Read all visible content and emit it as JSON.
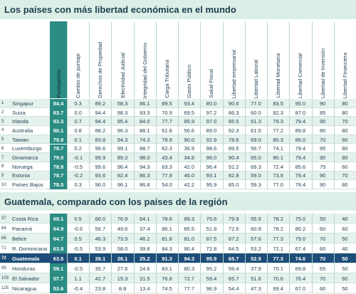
{
  "title": "Los países con más libertad económica en el mundo",
  "columns": [
    "Puntuación",
    "Cambio de puntaje",
    "Derechos de Propiedad",
    "Efectividad Judicial",
    "Integridad del Gobierno",
    "Carga Tributaria",
    "Gasto Público",
    "Salud Fiscal",
    "Libertad empresarial",
    "Libertad Laboral",
    "Libertad Monetaria",
    "Libertad Comercial",
    "Libertad de Inversión",
    "Libertad Financiera"
  ],
  "table1": {
    "rows": [
      {
        "rank": "1",
        "country": "Singapur",
        "score": "84.4",
        "values": [
          "0.3",
          "89.2",
          "58.3",
          "86.1",
          "89.5",
          "93.4",
          "80.0",
          "90.6",
          "77.0",
          "83.5",
          "95.0",
          "90",
          "80"
        ]
      },
      {
        "rank": "2",
        "country": "Suiza",
        "score": "83.7",
        "values": [
          "0.0",
          "94.4",
          "98.3",
          "93.3",
          "70.9",
          "69.5",
          "97.2",
          "86.3",
          "60.0",
          "82.3",
          "87.0",
          "85",
          "80"
        ]
      },
      {
        "rank": "3",
        "country": "Irlanda",
        "score": "83.3",
        "values": [
          "0.7",
          "94.4",
          "95.4",
          "84.0",
          "77.7",
          "85.9",
          "97.0",
          "85.5",
          "61.3",
          "79.3",
          "79.4",
          "90",
          "70"
        ]
      },
      {
        "rank": "4",
        "country": "Australia",
        "score": "80.1",
        "values": [
          "0.8",
          "88.2",
          "96.3",
          "88.1",
          "61.8",
          "56.6",
          "89.0",
          "92.3",
          "61.5",
          "77.2",
          "89.8",
          "80",
          "80"
        ]
      },
      {
        "rank": "5",
        "country": "Taiwan",
        "score": "79.8",
        "values": [
          "0.1",
          "83.8",
          "94.3",
          "74.3",
          "78.9",
          "90.0",
          "92.9",
          "78.6",
          "69.0",
          "80.3",
          "86.0",
          "70",
          "60"
        ]
      },
      {
        "rank": "6",
        "country": "Luxemburgo",
        "score": "79.7",
        "values": [
          "0.2",
          "96.6",
          "99.1",
          "88.7",
          "62.3",
          "36.9",
          "98.6",
          "89.5",
          "56.7",
          "74.1",
          "79.4",
          "95",
          "80"
        ]
      },
      {
        "rank": "7",
        "country": "Dinamarca",
        "score": "79.0",
        "values": [
          "-0.1",
          "99.9",
          "89.3",
          "98.0",
          "43.4",
          "34.8",
          "98.0",
          "90.4",
          "65.0",
          "80.1",
          "79.4",
          "90",
          "80"
        ]
      },
      {
        "rank": "8",
        "country": "Noruega",
        "score": "78.8",
        "values": [
          "-0.5",
          "99.6",
          "96.4",
          "94.3",
          "63.3",
          "42.0",
          "96.4",
          "91.2",
          "69.3",
          "72.4",
          "85.6",
          "75",
          "60"
        ]
      },
      {
        "rank": "9",
        "country": "Estonia",
        "score": "78.7",
        "values": [
          "-0.2",
          "93.6",
          "92.4",
          "86.3",
          "77.9",
          "46.0",
          "93.1",
          "82.8",
          "59.0",
          "73.9",
          "79.4",
          "90",
          "70"
        ]
      },
      {
        "rank": "10",
        "country": "Países Bajos",
        "score": "78.5",
        "values": [
          "0.3",
          "96.0",
          "96.1",
          "86.8",
          "54.0",
          "42.2",
          "95.9",
          "85.0",
          "59.3",
          "77.0",
          "79.4",
          "90",
          "80"
        ]
      }
    ]
  },
  "section2_title": "Guatemala, comparado con los países de la región",
  "table2": {
    "rows": [
      {
        "rank": "37",
        "country": "Costa Rica",
        "score": "69.1",
        "values": [
          "0.5",
          "66.0",
          "76.9",
          "64.1",
          "78.6",
          "89.3",
          "75.6",
          "79.9",
          "55.9",
          "78.2",
          "75.0",
          "50",
          "40"
        ]
      },
      {
        "rank": "64",
        "country": "Panamá",
        "score": "64.9",
        "values": [
          "-0.6",
          "56.7",
          "49.6",
          "37.4",
          "86.1",
          "85.5",
          "51.8",
          "72.6",
          "60.9",
          "78.2",
          "80.2",
          "60",
          "60"
        ]
      },
      {
        "rank": "66",
        "country": "Belice",
        "score": "64.7",
        "values": [
          "0.5",
          "46.3",
          "73.9",
          "46.2",
          "81.8",
          "81.0",
          "87.5",
          "67.2",
          "57.6",
          "77.3",
          "79.0",
          "70",
          "50"
        ]
      },
      {
        "rank": "71",
        "country": "R. Dominicana",
        "score": "63.8",
        "values": [
          "-0.5",
          "53.9",
          "58.0",
          "39.8",
          "84.3",
          "90.4",
          "72.8",
          "64.5",
          "53.2",
          "72.1",
          "67.4",
          "60",
          "40"
        ]
      },
      {
        "rank": "72",
        "country": "Guatemala",
        "score": "63.5",
        "values": [
          "0.1",
          "39.1",
          "26.1",
          "25.2",
          "91.3",
          "94.3",
          "95.9",
          "65.7",
          "52.5",
          "77.3",
          "74.6",
          "70",
          "50"
        ]
      },
      {
        "rank": "95",
        "country": "Honduras",
        "score": "59.1",
        "values": [
          "-0.5",
          "35.7",
          "27.6",
          "24.6",
          "83.1",
          "80.3",
          "95.2",
          "59.4",
          "37.9",
          "70.1",
          "69.8",
          "65",
          "50"
        ]
      },
      {
        "rank": "103",
        "country": "El Salvador",
        "score": "57.7",
        "values": [
          "1.1",
          "42.7",
          "15.3",
          "31.5",
          "76.8",
          "72.7",
          "59.4",
          "65.7",
          "51.6",
          "70.6",
          "76.4",
          "70",
          "60"
        ]
      },
      {
        "rank": "125",
        "country": "Nicaragua",
        "score": "53.6",
        "values": [
          "-0.4",
          "23.8",
          "8.8",
          "13.4",
          "74.5",
          "77.7",
          "96.9",
          "54.4",
          "47.3",
          "69.4",
          "67.0",
          "60",
          "50"
        ]
      }
    ]
  }
}
